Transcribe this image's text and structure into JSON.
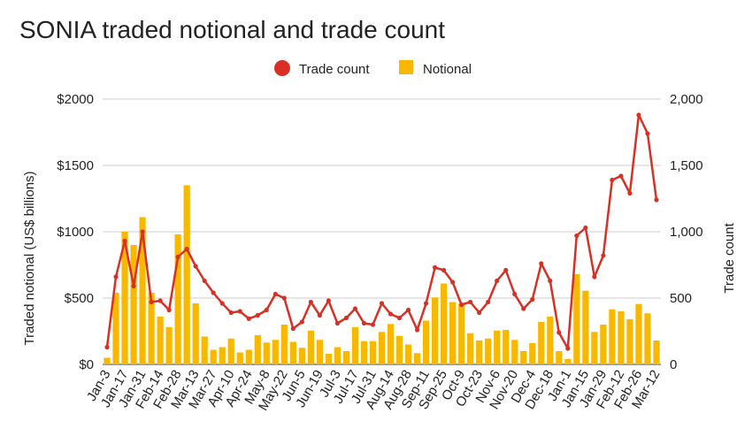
{
  "chart_data": {
    "type": "bar",
    "title": "SONIA traded notional and trade count",
    "x_tick_labels": [
      "Jan-3",
      "Jan-17",
      "Jan-31",
      "Feb-14",
      "Feb-28",
      "Mar-13",
      "Mar-27",
      "Apr-10",
      "Apr-24",
      "May-8",
      "May-22",
      "Jun-5",
      "Jun-19",
      "Jul-3",
      "Jul-17",
      "Jul-31",
      "Aug-14",
      "Aug-28",
      "Sep-11",
      "Sep-25",
      "Oct-9",
      "Oct-23",
      "Nov-6",
      "Nov-20",
      "Dec-4",
      "Dec-18",
      "Jan-1",
      "Jan-15",
      "Jan-29",
      "Feb-12",
      "Feb-26",
      "Mar-12"
    ],
    "y_left": {
      "label": "Traded notional (US$ billions)",
      "range": [
        0,
        2000
      ],
      "ticks": [
        "$0",
        "$500",
        "$1000",
        "$1500",
        "$2000"
      ]
    },
    "y_right": {
      "label": "Trade count",
      "range": [
        0,
        2000
      ],
      "ticks": [
        "0",
        "500",
        "1,000",
        "1,500",
        "2,000"
      ]
    },
    "legend": {
      "position": "top",
      "items": [
        {
          "name": "Trade count",
          "color": "#d93025",
          "marker": "circle"
        },
        {
          "name": "Notional",
          "color": "#f9b800",
          "marker": "square"
        }
      ]
    },
    "grid": true,
    "series": [
      {
        "name": "Notional",
        "type": "bar",
        "axis": "left",
        "color": "#f9b800",
        "values": [
          50,
          540,
          1000,
          900,
          1110,
          540,
          360,
          280,
          980,
          1350,
          460,
          210,
          110,
          130,
          195,
          90,
          110,
          220,
          165,
          185,
          300,
          170,
          125,
          255,
          185,
          80,
          130,
          100,
          280,
          175,
          175,
          245,
          305,
          215,
          150,
          85,
          330,
          505,
          610,
          470,
          455,
          235,
          180,
          195,
          255,
          260,
          185,
          100,
          160,
          320,
          360,
          100,
          40,
          680,
          555,
          245,
          300,
          415,
          400,
          340,
          455,
          385,
          180
        ]
      },
      {
        "name": "Trade count",
        "type": "line",
        "axis": "right",
        "color": "#d93025",
        "values": [
          130,
          660,
          930,
          590,
          1000,
          470,
          480,
          410,
          810,
          870,
          740,
          630,
          540,
          460,
          390,
          400,
          345,
          370,
          410,
          530,
          500,
          270,
          320,
          470,
          370,
          480,
          310,
          350,
          420,
          310,
          300,
          460,
          380,
          350,
          410,
          260,
          460,
          730,
          710,
          620,
          450,
          470,
          390,
          470,
          630,
          710,
          530,
          420,
          490,
          760,
          630,
          240,
          120,
          970,
          1030,
          660,
          820,
          1390,
          1420,
          1290,
          1880,
          1740,
          1240
        ]
      }
    ]
  }
}
